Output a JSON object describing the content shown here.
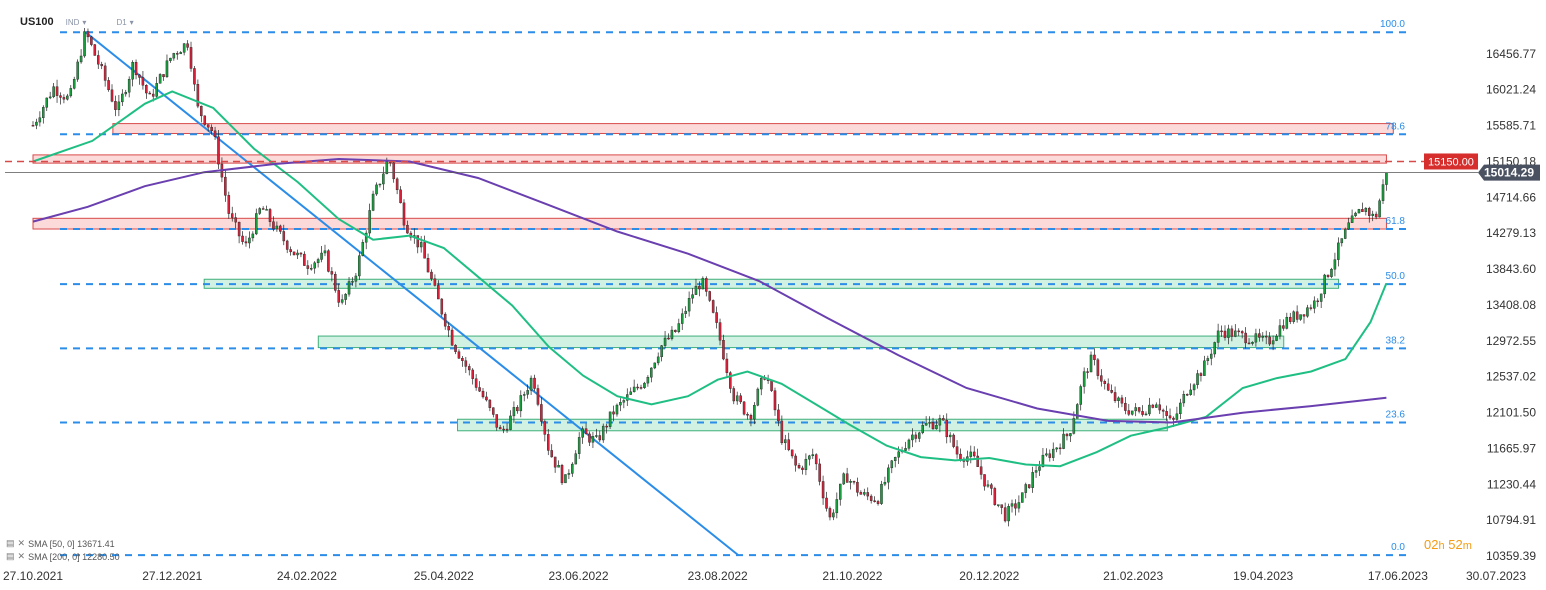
{
  "header": {
    "symbol": "US100",
    "source": "IND",
    "timeframe": "D1"
  },
  "current_price_label": "15014.29",
  "resistance_label": "15150.00",
  "colors": {
    "up_candle": "#1a9c3e",
    "down_candle": "#d6213a",
    "sma50": "#1fbf84",
    "sma200": "#6a3fb0",
    "fib_line": "#2b8de8",
    "trendline": "#2b8de8",
    "red_zone_fill": "#fbd3d3",
    "red_zone_stroke": "#d84a4a",
    "green_zone_fill": "#c9efdd",
    "green_zone_stroke": "#3fb07a",
    "resistance_line": "#d84a4a",
    "price_tag_bg": "#d62d2d",
    "current_tag_bg": "#4a5261",
    "timer_color": "#f39c12"
  },
  "legend": [
    {
      "icon": "sma-eye-icon",
      "text": "SMA [50, 0] 13671.41"
    },
    {
      "icon": "sma-eye-icon",
      "text": "SMA [200, 0] 12280.50"
    }
  ],
  "timer": {
    "hours": "02",
    "h": "h",
    "minutes": "52",
    "m": "m"
  },
  "chart_data": {
    "type": "candlestick",
    "title": "US100",
    "timeframe": "D1",
    "y_axis_ticks": [
      "16456.77",
      "16021.24",
      "15585.71",
      "15150.18",
      "14714.66",
      "14279.13",
      "13843.60",
      "13408.08",
      "12972.55",
      "12537.02",
      "12101.50",
      "11665.97",
      "11230.44",
      "10794.91",
      "10359.39"
    ],
    "x_axis_ticks": [
      "27.10.2021",
      "27.12.2021",
      "24.02.2022",
      "25.04.2022",
      "23.06.2022",
      "23.08.2022",
      "21.10.2022",
      "20.12.2022",
      "21.02.2023",
      "19.04.2023",
      "17.06.2023",
      "30.07.2023"
    ],
    "ylim": [
      10359.39,
      16892.3
    ],
    "fibonacci_levels": [
      {
        "label": "100.0",
        "value": 16720
      },
      {
        "label": "78.6",
        "value": 15480
      },
      {
        "label": "61.8",
        "value": 14330
      },
      {
        "label": "50.0",
        "value": 13660
      },
      {
        "label": "38.2",
        "value": 12880
      },
      {
        "label": "23.6",
        "value": 11980
      },
      {
        "label": "0.0",
        "value": 10370
      }
    ],
    "resistance_level": 15150.0,
    "current_price": 15014.29,
    "zones": [
      {
        "color": "red",
        "from_date": "2021-12-01",
        "to_date": "2023-06-15",
        "low": 15490,
        "high": 15610
      },
      {
        "color": "red",
        "from_date": "2021-10-27",
        "to_date": "2023-06-12",
        "low": 15130,
        "high": 15230
      },
      {
        "color": "red",
        "from_date": "2021-10-27",
        "to_date": "2023-06-12",
        "low": 14330,
        "high": 14460
      },
      {
        "color": "green",
        "from_date": "2022-01-10",
        "to_date": "2023-05-22",
        "low": 13610,
        "high": 13720
      },
      {
        "color": "green",
        "from_date": "2022-03-01",
        "to_date": "2023-04-28",
        "low": 12890,
        "high": 13030
      },
      {
        "color": "green",
        "from_date": "2022-05-01",
        "to_date": "2023-03-08",
        "low": 11880,
        "high": 12020
      }
    ],
    "trendline": {
      "from": [
        "2021-11-19",
        16720
      ],
      "to": [
        "2022-09-01",
        10370
      ]
    },
    "series": [
      {
        "name": "US100",
        "type": "candlestick",
        "ohlc_points": [
          [
            "2021-10-27",
            15300,
            15590
          ],
          [
            "2021-11-05",
            15590,
            16050
          ],
          [
            "2021-11-12",
            16050,
            15900
          ],
          [
            "2021-11-19",
            15900,
            16720
          ],
          [
            "2021-11-26",
            16720,
            16250
          ],
          [
            "2021-12-03",
            16250,
            15750
          ],
          [
            "2021-12-10",
            15750,
            16350
          ],
          [
            "2021-12-17",
            16350,
            15900
          ],
          [
            "2021-12-27",
            15900,
            16450
          ],
          [
            "2022-01-03",
            16450,
            16600
          ],
          [
            "2022-01-07",
            16600,
            15800
          ],
          [
            "2022-01-14",
            15800,
            15500
          ],
          [
            "2022-01-21",
            15500,
            14500
          ],
          [
            "2022-01-28",
            14500,
            14100
          ],
          [
            "2022-02-04",
            14100,
            14600
          ],
          [
            "2022-02-11",
            14600,
            14300
          ],
          [
            "2022-02-18",
            14300,
            14050
          ],
          [
            "2022-02-24",
            14050,
            13900
          ],
          [
            "2022-03-04",
            13900,
            14000
          ],
          [
            "2022-03-11",
            14000,
            13400
          ],
          [
            "2022-03-18",
            13400,
            13850
          ],
          [
            "2022-03-25",
            13850,
            14700
          ],
          [
            "2022-04-01",
            14700,
            15200
          ],
          [
            "2022-04-08",
            15200,
            14400
          ],
          [
            "2022-04-15",
            14400,
            14100
          ],
          [
            "2022-04-22",
            14100,
            13500
          ],
          [
            "2022-04-29",
            13500,
            12950
          ],
          [
            "2022-05-06",
            12950,
            12600
          ],
          [
            "2022-05-13",
            12600,
            12250
          ],
          [
            "2022-05-20",
            12250,
            11850
          ],
          [
            "2022-05-27",
            11850,
            12150
          ],
          [
            "2022-06-03",
            12150,
            12550
          ],
          [
            "2022-06-10",
            12550,
            11650
          ],
          [
            "2022-06-17",
            11650,
            11250
          ],
          [
            "2022-06-24",
            11250,
            11850
          ],
          [
            "2022-07-01",
            11850,
            11750
          ],
          [
            "2022-07-08",
            11750,
            12100
          ],
          [
            "2022-07-15",
            12100,
            12300
          ],
          [
            "2022-07-22",
            12300,
            12500
          ],
          [
            "2022-07-29",
            12500,
            12900
          ],
          [
            "2022-08-05",
            12900,
            13100
          ],
          [
            "2022-08-12",
            13100,
            13550
          ],
          [
            "2022-08-16",
            13550,
            13700
          ],
          [
            "2022-08-23",
            13700,
            13100
          ],
          [
            "2022-08-30",
            13100,
            12300
          ],
          [
            "2022-09-06",
            12300,
            12050
          ],
          [
            "2022-09-13",
            12050,
            12600
          ],
          [
            "2022-09-20",
            12600,
            11800
          ],
          [
            "2022-09-27",
            11800,
            11400
          ],
          [
            "2022-10-04",
            11400,
            11600
          ],
          [
            "2022-10-11",
            11600,
            10800
          ],
          [
            "2022-10-18",
            10800,
            11350
          ],
          [
            "2022-10-25",
            11350,
            11100
          ],
          [
            "2022-11-01",
            11100,
            11050
          ],
          [
            "2022-11-08",
            11050,
            11500
          ],
          [
            "2022-11-15",
            11500,
            11800
          ],
          [
            "2022-11-22",
            11800,
            11950
          ],
          [
            "2022-11-29",
            11950,
            12000
          ],
          [
            "2022-12-06",
            12000,
            11600
          ],
          [
            "2022-12-13",
            11600,
            11550
          ],
          [
            "2022-12-20",
            11550,
            11150
          ],
          [
            "2022-12-27",
            11150,
            10850
          ],
          [
            "2023-01-03",
            10850,
            11050
          ],
          [
            "2023-01-10",
            11050,
            11450
          ],
          [
            "2023-01-17",
            11450,
            11650
          ],
          [
            "2023-01-24",
            11650,
            11850
          ],
          [
            "2023-01-31",
            11850,
            12600
          ],
          [
            "2023-02-03",
            12600,
            12750
          ],
          [
            "2023-02-10",
            12750,
            12350
          ],
          [
            "2023-02-17",
            12350,
            12150
          ],
          [
            "2023-02-24",
            12150,
            12100
          ],
          [
            "2023-03-03",
            12100,
            12250
          ],
          [
            "2023-03-10",
            12250,
            11950
          ],
          [
            "2023-03-17",
            11950,
            12400
          ],
          [
            "2023-03-24",
            12400,
            12650
          ],
          [
            "2023-03-31",
            12650,
            13100
          ],
          [
            "2023-04-07",
            13100,
            13050
          ],
          [
            "2023-04-14",
            13050,
            13000
          ],
          [
            "2023-04-21",
            13000,
            12950
          ],
          [
            "2023-04-28",
            12950,
            13200
          ],
          [
            "2023-05-05",
            13200,
            13300
          ],
          [
            "2023-05-12",
            13300,
            13450
          ],
          [
            "2023-05-19",
            13450,
            13900
          ],
          [
            "2023-05-26",
            13900,
            14350
          ],
          [
            "2023-06-02",
            14350,
            14600
          ],
          [
            "2023-06-07",
            14600,
            14450
          ],
          [
            "2023-06-12",
            14450,
            15014.29
          ]
        ]
      },
      {
        "name": "SMA [50, 0]",
        "type": "line",
        "points": [
          [
            "2021-10-27",
            15150
          ],
          [
            "2021-11-22",
            15400
          ],
          [
            "2021-12-15",
            15850
          ],
          [
            "2021-12-27",
            16000
          ],
          [
            "2022-01-14",
            15800
          ],
          [
            "2022-02-01",
            15300
          ],
          [
            "2022-02-20",
            14900
          ],
          [
            "2022-03-10",
            14450
          ],
          [
            "2022-03-25",
            14200
          ],
          [
            "2022-04-10",
            14250
          ],
          [
            "2022-04-25",
            14100
          ],
          [
            "2022-05-10",
            13750
          ],
          [
            "2022-05-25",
            13400
          ],
          [
            "2022-06-10",
            12900
          ],
          [
            "2022-06-25",
            12550
          ],
          [
            "2022-07-10",
            12300
          ],
          [
            "2022-07-25",
            12200
          ],
          [
            "2022-08-10",
            12300
          ],
          [
            "2022-08-23",
            12500
          ],
          [
            "2022-09-05",
            12600
          ],
          [
            "2022-09-20",
            12450
          ],
          [
            "2022-10-05",
            12200
          ],
          [
            "2022-10-20",
            11950
          ],
          [
            "2022-11-05",
            11700
          ],
          [
            "2022-11-20",
            11560
          ],
          [
            "2022-12-05",
            11520
          ],
          [
            "2022-12-20",
            11550
          ],
          [
            "2023-01-05",
            11470
          ],
          [
            "2023-01-20",
            11450
          ],
          [
            "2023-02-05",
            11620
          ],
          [
            "2023-02-20",
            11820
          ],
          [
            "2023-03-08",
            11920
          ],
          [
            "2023-03-25",
            12050
          ],
          [
            "2023-04-10",
            12400
          ],
          [
            "2023-04-25",
            12520
          ],
          [
            "2023-05-10",
            12600
          ],
          [
            "2023-05-25",
            12750
          ],
          [
            "2023-06-05",
            13200
          ],
          [
            "2023-06-12",
            13671.41
          ]
        ]
      },
      {
        "name": "SMA [200, 0]",
        "type": "line",
        "points": [
          [
            "2021-10-27",
            14420
          ],
          [
            "2021-11-20",
            14600
          ],
          [
            "2021-12-15",
            14850
          ],
          [
            "2022-01-10",
            15020
          ],
          [
            "2022-02-10",
            15120
          ],
          [
            "2022-03-10",
            15180
          ],
          [
            "2022-04-10",
            15150
          ],
          [
            "2022-05-10",
            14950
          ],
          [
            "2022-06-10",
            14620
          ],
          [
            "2022-07-10",
            14300
          ],
          [
            "2022-08-10",
            14030
          ],
          [
            "2022-09-10",
            13700
          ],
          [
            "2022-10-10",
            13250
          ],
          [
            "2022-11-10",
            12800
          ],
          [
            "2022-12-10",
            12400
          ],
          [
            "2023-01-10",
            12150
          ],
          [
            "2023-02-10",
            12000
          ],
          [
            "2023-03-10",
            11980
          ],
          [
            "2023-04-10",
            12100
          ],
          [
            "2023-05-10",
            12180
          ],
          [
            "2023-06-12",
            12280.5
          ]
        ]
      }
    ]
  }
}
